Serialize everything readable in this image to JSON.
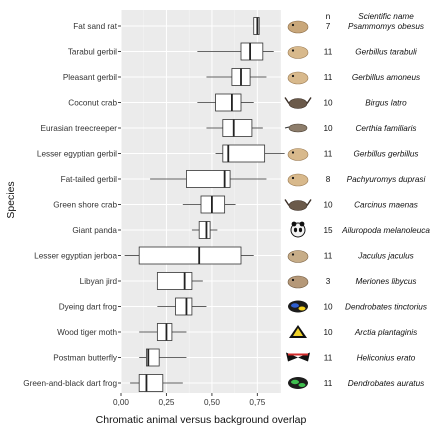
{
  "chart_data": {
    "type": "boxplot",
    "orientation": "horizontal",
    "xlabel": "Chromatic animal versus background overlap",
    "ylabel": "Species",
    "xlim": [
      0,
      0.88
    ],
    "xticks": [
      0,
      0.25,
      0.5,
      0.75
    ],
    "xtick_labels": [
      "0,00",
      "0,25",
      "0,50",
      "0,75"
    ],
    "grid": true,
    "background": "#ebebeb",
    "columns": {
      "n": "n",
      "scientific": "Scientific name"
    },
    "series": [
      {
        "name": "Fat sand rat",
        "scientific": "Psammomys obesus",
        "n": "7",
        "icon": "rat-photo-icon",
        "whisker_low": 0.73,
        "q1": 0.73,
        "median": 0.75,
        "q3": 0.76,
        "whisker_high": 0.76
      },
      {
        "name": "Tarabul gerbil",
        "scientific": "Gerbillus tarabuli",
        "n": "11",
        "icon": "gerbil-photo-icon",
        "whisker_low": 0.42,
        "q1": 0.66,
        "median": 0.71,
        "q3": 0.78,
        "whisker_high": 0.84
      },
      {
        "name": "Pleasant gerbil",
        "scientific": "Gerbillus amoneus",
        "n": "11",
        "icon": "gerbil-photo-icon",
        "whisker_low": 0.47,
        "q1": 0.61,
        "median": 0.66,
        "q3": 0.71,
        "whisker_high": 0.8
      },
      {
        "name": "Coconut crab",
        "scientific": "Birgus latro",
        "n": "10",
        "icon": "crab-photo-icon",
        "whisker_low": 0.42,
        "q1": 0.52,
        "median": 0.61,
        "q3": 0.66,
        "whisker_high": 0.73
      },
      {
        "name": "Eurasian treecreeper",
        "scientific": "Certhia familiaris",
        "n": "10",
        "icon": "bird-photo-icon",
        "whisker_low": 0.47,
        "q1": 0.56,
        "median": 0.62,
        "q3": 0.72,
        "whisker_high": 0.78
      },
      {
        "name": "Lesser egyptian gerbil",
        "scientific": "Gerbillus gerbillus",
        "n": "11",
        "icon": "gerbil-photo-icon",
        "whisker_low": 0.52,
        "q1": 0.56,
        "median": 0.59,
        "q3": 0.79,
        "whisker_high": 0.9
      },
      {
        "name": "Fat-tailed gerbil",
        "scientific": "Pachyuromys duprasi",
        "n": "8",
        "icon": "gerbil-photo-icon",
        "whisker_low": 0.16,
        "q1": 0.36,
        "median": 0.57,
        "q3": 0.6,
        "whisker_high": 0.8
      },
      {
        "name": "Green shore crab",
        "scientific": "Carcinus maenas",
        "n": "10",
        "icon": "crab-photo-icon",
        "whisker_low": 0.34,
        "q1": 0.44,
        "median": 0.5,
        "q3": 0.57,
        "whisker_high": 0.63
      },
      {
        "name": "Giant panda",
        "scientific": "Ailuropoda melanoleuca",
        "n": "15",
        "icon": "panda-photo-icon",
        "whisker_low": 0.39,
        "q1": 0.43,
        "median": 0.47,
        "q3": 0.49,
        "whisker_high": 0.53
      },
      {
        "name": "Lesser egyptian jerboa",
        "scientific": "Jaculus jaculus",
        "n": "11",
        "icon": "jerboa-photo-icon",
        "whisker_low": 0.02,
        "q1": 0.1,
        "median": 0.43,
        "q3": 0.66,
        "whisker_high": 0.73
      },
      {
        "name": "Libyan jird",
        "scientific": "Meriones libycus",
        "n": "3",
        "icon": "jird-photo-icon",
        "whisker_low": 0.2,
        "q1": 0.2,
        "median": 0.35,
        "q3": 0.39,
        "whisker_high": 0.45
      },
      {
        "name": "Dyeing dart frog",
        "scientific": "Dendrobates tinctorius",
        "n": "10",
        "icon": "frog-photo-icon",
        "whisker_low": 0.2,
        "q1": 0.3,
        "median": 0.36,
        "q3": 0.39,
        "whisker_high": 0.47
      },
      {
        "name": "Wood tiger moth",
        "scientific": "Arctia plantaginis",
        "n": "10",
        "icon": "moth-photo-icon",
        "whisker_low": 0.1,
        "q1": 0.2,
        "median": 0.25,
        "q3": 0.28,
        "whisker_high": 0.36
      },
      {
        "name": "Postman butterfly",
        "scientific": "Heliconius erato",
        "n": "11",
        "icon": "butterfly-photo-icon",
        "whisker_low": 0.1,
        "q1": 0.14,
        "median": 0.15,
        "q3": 0.21,
        "whisker_high": 0.36
      },
      {
        "name": "Green-and-black dart frog",
        "scientific": "Dendrobates auratus",
        "n": "11",
        "icon": "frog-photo-icon",
        "whisker_low": 0.05,
        "q1": 0.1,
        "median": 0.14,
        "q3": 0.23,
        "whisker_high": 0.34
      }
    ]
  }
}
